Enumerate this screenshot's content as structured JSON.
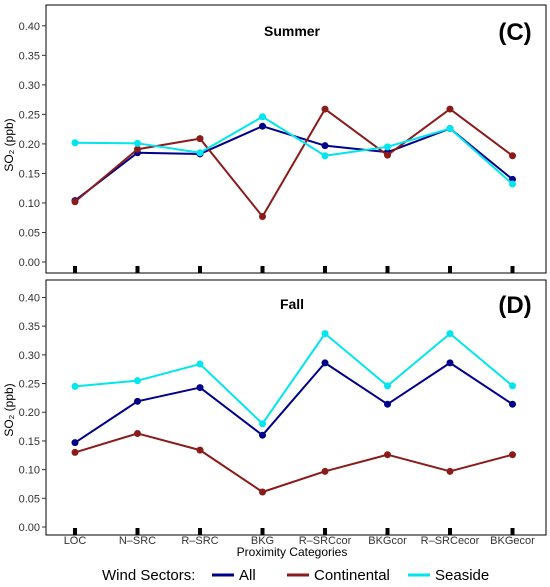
{
  "chart_data": [
    {
      "type": "line",
      "panel_title": "Summer",
      "panel_tag": "(C)",
      "ylabel": "SO₂ (ppb)",
      "ylim": [
        0,
        0.42
      ],
      "yticks": [
        "0.00",
        "0.05",
        "0.10",
        "0.15",
        "0.20",
        "0.25",
        "0.30",
        "0.35",
        "0.40"
      ],
      "categories": [
        "LOC",
        "N–SRC",
        "R–SRC",
        "BKG",
        "R–SRCcor",
        "BKGcor",
        "R–SRCecor",
        "BKGecor"
      ],
      "series": [
        {
          "name": "All",
          "color": "#00008B",
          "values": [
            0.104,
            0.185,
            0.183,
            0.23,
            0.197,
            0.186,
            0.226,
            0.14
          ]
        },
        {
          "name": "Continental",
          "color": "#8B1A1A",
          "values": [
            0.102,
            0.191,
            0.209,
            0.077,
            0.259,
            0.181,
            0.259,
            0.18
          ]
        },
        {
          "name": "Seaside",
          "color": "#00E5EE",
          "values": [
            0.202,
            0.201,
            0.185,
            0.246,
            0.18,
            0.195,
            0.226,
            0.132
          ]
        }
      ]
    },
    {
      "type": "line",
      "panel_title": "Fall",
      "panel_tag": "(D)",
      "ylabel": "SO₂ (ppb)",
      "xlabel": "Proximity Categories",
      "ylim": [
        0,
        0.42
      ],
      "yticks": [
        "0.00",
        "0.05",
        "0.10",
        "0.15",
        "0.20",
        "0.25",
        "0.30",
        "0.35",
        "0.40"
      ],
      "categories": [
        "LOC",
        "N–SRC",
        "R–SRC",
        "BKG",
        "R–SRCcor",
        "BKGcor",
        "R–SRCecor",
        "BKGecor"
      ],
      "series": [
        {
          "name": "All",
          "color": "#00008B",
          "values": [
            0.147,
            0.219,
            0.243,
            0.16,
            0.286,
            0.214,
            0.286,
            0.214
          ]
        },
        {
          "name": "Continental",
          "color": "#8B1A1A",
          "values": [
            0.13,
            0.163,
            0.134,
            0.061,
            0.097,
            0.126,
            0.097,
            0.126
          ]
        },
        {
          "name": "Seaside",
          "color": "#00E5EE",
          "values": [
            0.245,
            0.255,
            0.284,
            0.18,
            0.337,
            0.246,
            0.337,
            0.246
          ]
        }
      ]
    }
  ],
  "legend": {
    "title": "Wind Sectors:",
    "items": [
      {
        "label": "All",
        "color": "#00008B"
      },
      {
        "label": "Continental",
        "color": "#8B1A1A"
      },
      {
        "label": "Seaside",
        "color": "#00E5EE"
      }
    ]
  }
}
